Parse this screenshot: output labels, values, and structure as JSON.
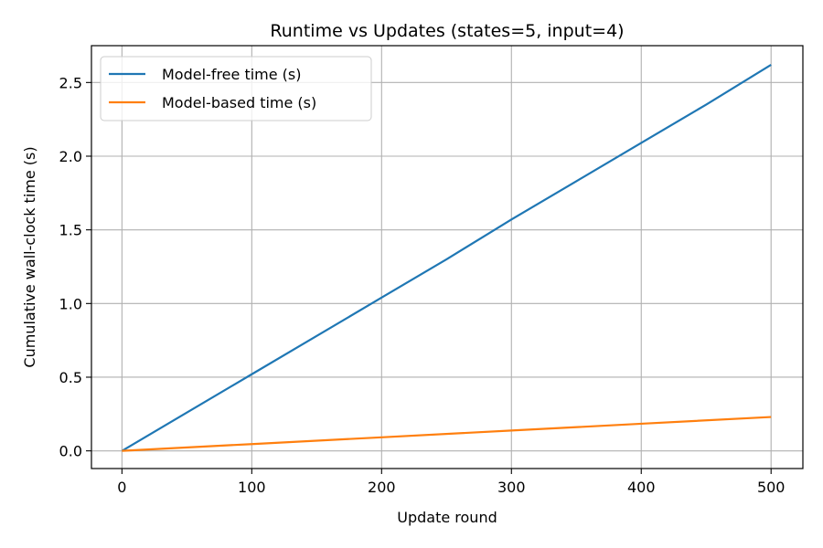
{
  "chart_data": {
    "type": "line",
    "title": "Runtime vs Updates  (states=5, input=4)",
    "xlabel": "Update round",
    "ylabel": "Cumulative wall-clock time (s)",
    "xlim": [
      -23.5,
      524.5
    ],
    "ylim": [
      -0.12,
      2.75
    ],
    "xticks": [
      0,
      100,
      200,
      300,
      400,
      500
    ],
    "yticks": [
      0.0,
      0.5,
      1.0,
      1.5,
      2.0,
      2.5
    ],
    "xtick_labels": [
      "0",
      "100",
      "200",
      "300",
      "400",
      "500"
    ],
    "ytick_labels": [
      "0.0",
      "0.5",
      "1.0",
      "1.5",
      "2.0",
      "2.5"
    ],
    "grid": true,
    "legend_position": "top-left",
    "series": [
      {
        "name": "Model-free time (s)",
        "color": "#1f77b4",
        "x": [
          0,
          50,
          100,
          150,
          200,
          250,
          300,
          350,
          400,
          450,
          500
        ],
        "y": [
          0.0,
          0.26,
          0.52,
          0.78,
          1.04,
          1.3,
          1.57,
          1.83,
          2.09,
          2.35,
          2.62
        ]
      },
      {
        "name": "Model-based time (s)",
        "color": "#ff7f0e",
        "x": [
          0,
          100,
          200,
          300,
          400,
          500
        ],
        "y": [
          0.0,
          0.046,
          0.092,
          0.138,
          0.184,
          0.23
        ]
      }
    ]
  }
}
